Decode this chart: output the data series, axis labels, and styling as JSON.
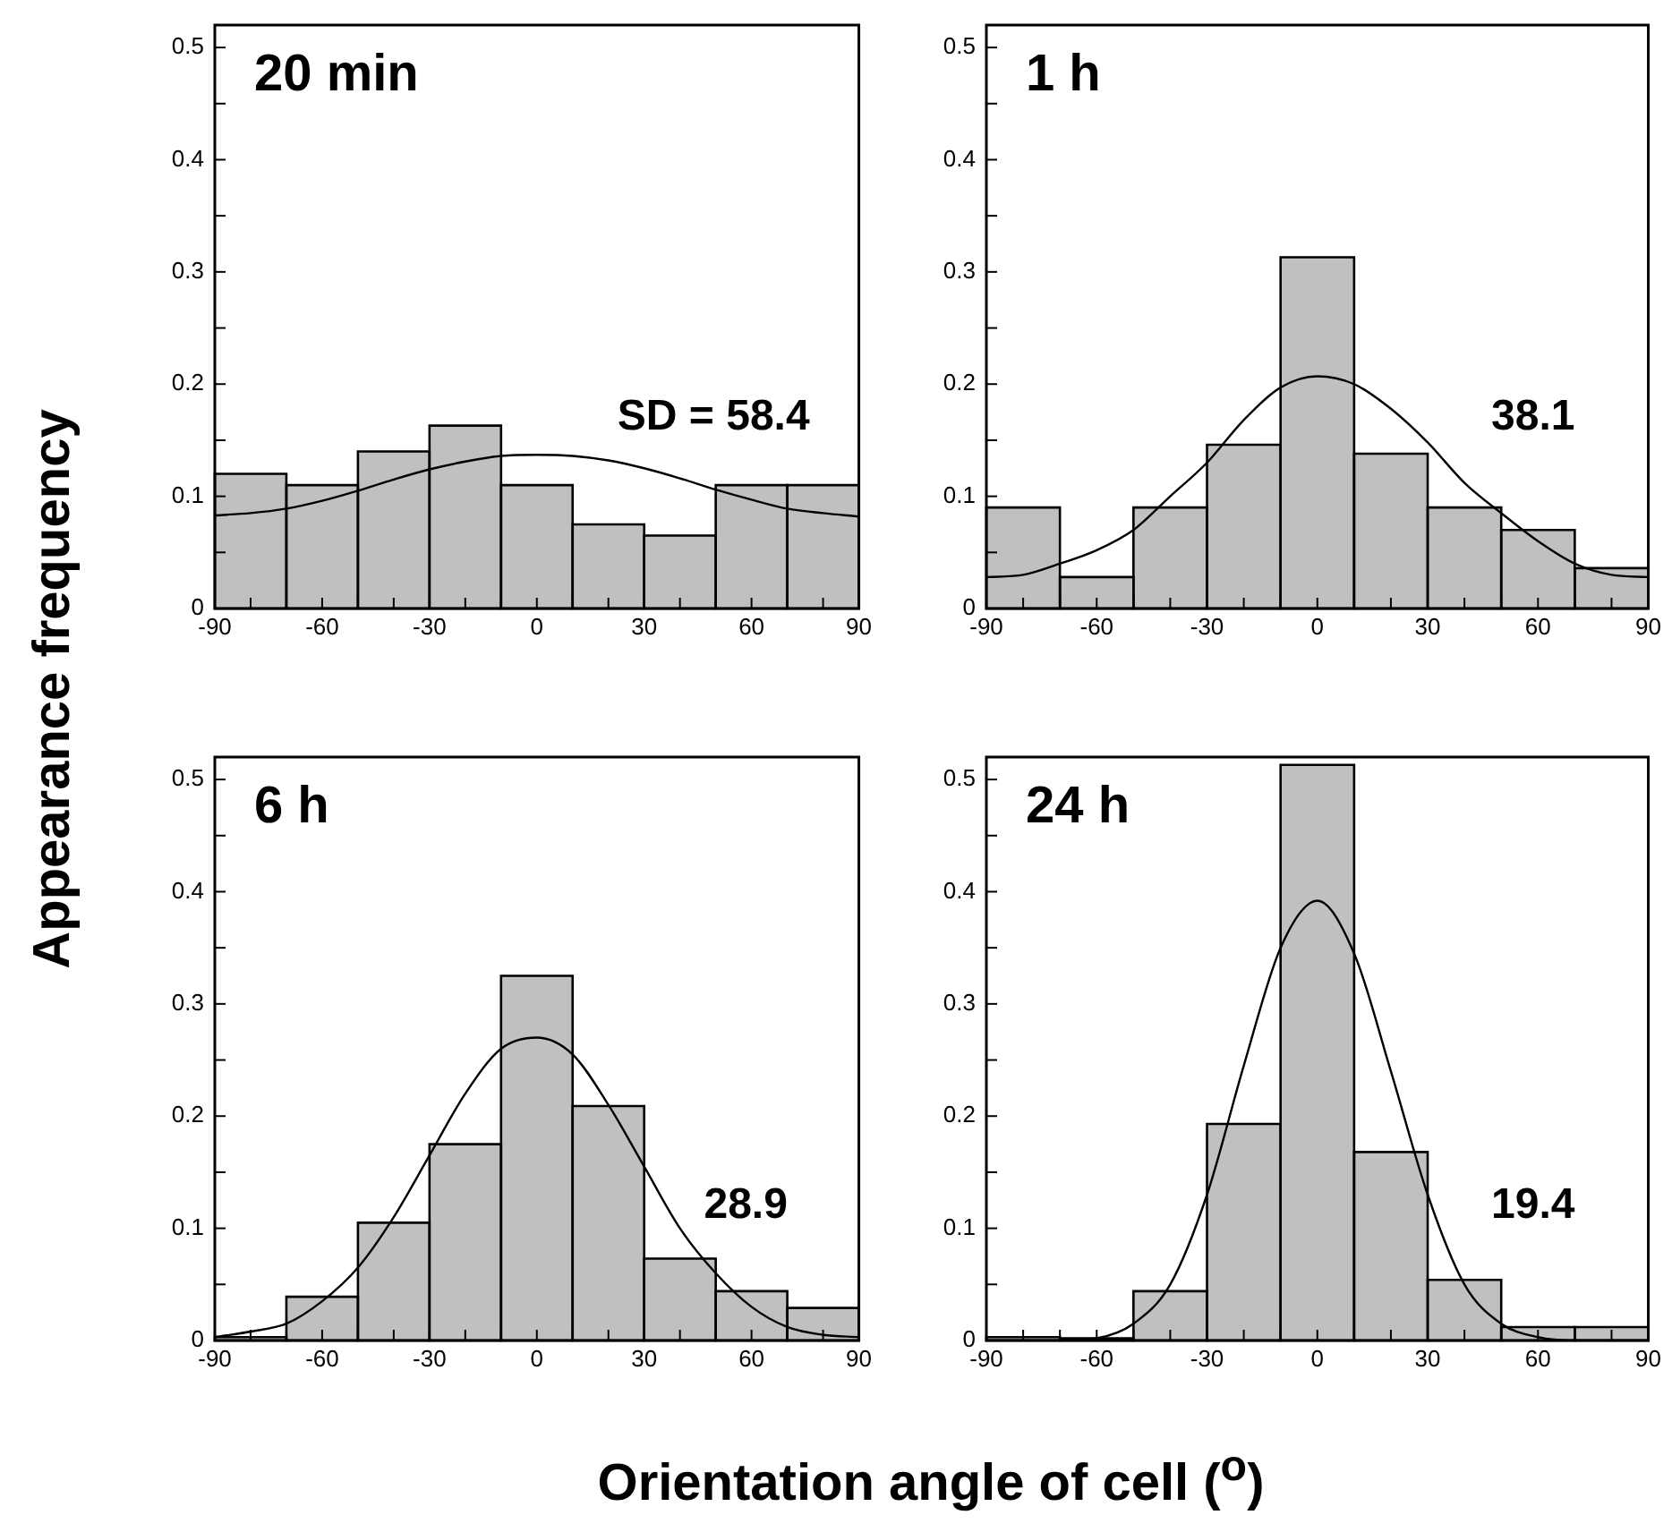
{
  "chart_data": [
    {
      "type": "histogram",
      "title": "20 min",
      "ylabel": "Appearance frequency",
      "annotations": [
        "SD = 58.4"
      ],
      "bins": [
        -90,
        -70,
        -50,
        -30,
        -10,
        10,
        30,
        50,
        70,
        90
      ],
      "values": [
        0.12,
        0.11,
        0.14,
        0.163,
        0.11,
        0.075,
        0.065,
        0.11,
        0.11
      ],
      "color": "#c0c0c0",
      "series": [
        {
          "type": "line",
          "color": "#000000",
          "x": [
            -90,
            -80,
            -70,
            -60,
            -50,
            -40,
            -30,
            -20,
            -10,
            0,
            10,
            20,
            30,
            40,
            50,
            60,
            70,
            80,
            90
          ],
          "values": [
            0.083,
            0.085,
            0.089,
            0.096,
            0.105,
            0.115,
            0.124,
            0.131,
            0.136,
            0.137,
            0.136,
            0.132,
            0.125,
            0.116,
            0.106,
            0.097,
            0.089,
            0.085,
            0.082
          ]
        }
      ],
      "xlim": [
        -90,
        90
      ],
      "xticks": [
        -90,
        {
          "value": -80,
          "label": null
        },
        {
          "value": -70,
          "label": null
        },
        -60,
        {
          "value": -50,
          "label": null
        },
        {
          "value": -40,
          "label": null
        },
        -30,
        {
          "value": -20,
          "label": null
        },
        {
          "value": -10,
          "label": null
        },
        0,
        {
          "value": 10,
          "label": null
        },
        {
          "value": 20,
          "label": null
        },
        30,
        {
          "value": 40,
          "label": null
        },
        {
          "value": 50,
          "label": null
        },
        60,
        {
          "value": 70,
          "label": null
        },
        {
          "value": 80,
          "label": null
        },
        90
      ],
      "ylim": [
        0,
        0.52
      ],
      "yticks": [
        0,
        {
          "value": 0.05,
          "label": null
        },
        0.1,
        {
          "value": 0.15,
          "label": null
        },
        0.2,
        {
          "value": 0.25,
          "label": null
        },
        0.3,
        {
          "value": 0.35,
          "label": null
        },
        0.4,
        {
          "value": 0.45,
          "label": null
        },
        0.5
      ],
      "marker": "none",
      "legend": false,
      "grid": false
    },
    {
      "type": "histogram",
      "title": "1 h",
      "annotations": [
        "38.1"
      ],
      "bins": [
        -90,
        -70,
        -50,
        -30,
        -10,
        10,
        30,
        50,
        70,
        90
      ],
      "values": [
        0.09,
        0.028,
        0.09,
        0.146,
        0.313,
        0.138,
        0.09,
        0.07,
        0.036
      ],
      "color": "#c0c0c0",
      "series": [
        {
          "type": "line",
          "color": "#000000",
          "x": [
            -90,
            -80,
            -70,
            -60,
            -50,
            -40,
            -30,
            -20,
            -10,
            0,
            10,
            20,
            30,
            40,
            50,
            60,
            70,
            80,
            90
          ],
          "values": [
            0.028,
            0.03,
            0.04,
            0.052,
            0.07,
            0.1,
            0.13,
            0.168,
            0.197,
            0.207,
            0.2,
            0.178,
            0.148,
            0.112,
            0.085,
            0.06,
            0.04,
            0.03,
            0.028
          ]
        }
      ],
      "xlim": [
        -90,
        90
      ],
      "xticks": [
        -90,
        {
          "value": -80,
          "label": null
        },
        {
          "value": -70,
          "label": null
        },
        -60,
        {
          "value": -50,
          "label": null
        },
        {
          "value": -40,
          "label": null
        },
        -30,
        {
          "value": -20,
          "label": null
        },
        {
          "value": -10,
          "label": null
        },
        0,
        {
          "value": 10,
          "label": null
        },
        {
          "value": 20,
          "label": null
        },
        30,
        {
          "value": 40,
          "label": null
        },
        {
          "value": 50,
          "label": null
        },
        60,
        {
          "value": 70,
          "label": null
        },
        {
          "value": 80,
          "label": null
        },
        90
      ],
      "ylim": [
        0,
        0.52
      ],
      "yticks": [
        0,
        {
          "value": 0.05,
          "label": null
        },
        0.1,
        {
          "value": 0.15,
          "label": null
        },
        0.2,
        {
          "value": 0.25,
          "label": null
        },
        0.3,
        {
          "value": 0.35,
          "label": null
        },
        0.4,
        {
          "value": 0.45,
          "label": null
        },
        0.5
      ],
      "marker": "none",
      "legend": false,
      "grid": false
    },
    {
      "type": "histogram",
      "title": "6 h",
      "xlabel": "Orientation angle of cell ($^{o}$)",
      "annotations": [
        "28.9"
      ],
      "bins": [
        -90,
        -70,
        -50,
        -30,
        -10,
        10,
        30,
        50,
        70,
        90
      ],
      "values": [
        0.003,
        0.039,
        0.105,
        0.175,
        0.325,
        0.209,
        0.073,
        0.044,
        0.029
      ],
      "color": "#c0c0c0",
      "series": [
        {
          "type": "line",
          "color": "#000000",
          "x": [
            -90,
            -80,
            -70,
            -60,
            -50,
            -40,
            -30,
            -20,
            -10,
            0,
            10,
            20,
            30,
            40,
            50,
            60,
            70,
            80,
            90
          ],
          "values": [
            0.003,
            0.008,
            0.015,
            0.035,
            0.065,
            0.11,
            0.165,
            0.22,
            0.26,
            0.27,
            0.255,
            0.21,
            0.155,
            0.1,
            0.06,
            0.03,
            0.012,
            0.005,
            0.003
          ]
        }
      ],
      "xlim": [
        -90,
        90
      ],
      "xticks": [
        -90,
        {
          "value": -80,
          "label": null
        },
        {
          "value": -70,
          "label": null
        },
        -60,
        {
          "value": -50,
          "label": null
        },
        {
          "value": -40,
          "label": null
        },
        -30,
        {
          "value": -20,
          "label": null
        },
        {
          "value": -10,
          "label": null
        },
        0,
        {
          "value": 10,
          "label": null
        },
        {
          "value": 20,
          "label": null
        },
        30,
        {
          "value": 40,
          "label": null
        },
        {
          "value": 50,
          "label": null
        },
        60,
        {
          "value": 70,
          "label": null
        },
        {
          "value": 80,
          "label": null
        },
        90
      ],
      "ylim": [
        0,
        0.52
      ],
      "yticks": [
        0,
        {
          "value": 0.05,
          "label": null
        },
        0.1,
        {
          "value": 0.15,
          "label": null
        },
        0.2,
        {
          "value": 0.25,
          "label": null
        },
        0.3,
        {
          "value": 0.35,
          "label": null
        },
        0.4,
        {
          "value": 0.45,
          "label": null
        },
        0.5
      ],
      "marker": "none",
      "legend": false,
      "grid": false
    },
    {
      "type": "histogram",
      "title": "24 h",
      "annotations": [
        "19.4"
      ],
      "bins": [
        -90,
        -70,
        -50,
        -30,
        -10,
        10,
        30,
        50,
        70,
        90
      ],
      "values": [
        0.003,
        0.002,
        0.044,
        0.193,
        0.513,
        0.168,
        0.054,
        0.012,
        0.012
      ],
      "color": "#c0c0c0",
      "series": [
        {
          "type": "line",
          "color": "#000000",
          "x": [
            -90,
            -70,
            -60,
            -50,
            -40,
            -30,
            -20,
            -10,
            0,
            10,
            20,
            30,
            40,
            50,
            60,
            70,
            90
          ],
          "values": [
            0,
            0,
            0.002,
            0.015,
            0.05,
            0.13,
            0.245,
            0.35,
            0.392,
            0.345,
            0.24,
            0.13,
            0.05,
            0.015,
            0.003,
            0,
            0
          ]
        }
      ],
      "xlim": [
        -90,
        90
      ],
      "xticks": [
        -90,
        {
          "value": -80,
          "label": null
        },
        {
          "value": -70,
          "label": null
        },
        -60,
        {
          "value": -50,
          "label": null
        },
        {
          "value": -40,
          "label": null
        },
        -30,
        {
          "value": -20,
          "label": null
        },
        {
          "value": -10,
          "label": null
        },
        0,
        {
          "value": 10,
          "label": null
        },
        {
          "value": 20,
          "label": null
        },
        30,
        {
          "value": 40,
          "label": null
        },
        {
          "value": 50,
          "label": null
        },
        60,
        {
          "value": 70,
          "label": null
        },
        {
          "value": 80,
          "label": null
        },
        90
      ],
      "ylim": [
        0,
        0.52
      ],
      "yticks": [
        0,
        {
          "value": 0.05,
          "label": null
        },
        0.1,
        {
          "value": 0.15,
          "label": null
        },
        0.2,
        {
          "value": 0.25,
          "label": null
        },
        0.3,
        {
          "value": 0.35,
          "label": null
        },
        0.4,
        {
          "value": 0.45,
          "label": null
        },
        0.5
      ],
      "marker": "none",
      "legend": false,
      "grid": false
    }
  ]
}
